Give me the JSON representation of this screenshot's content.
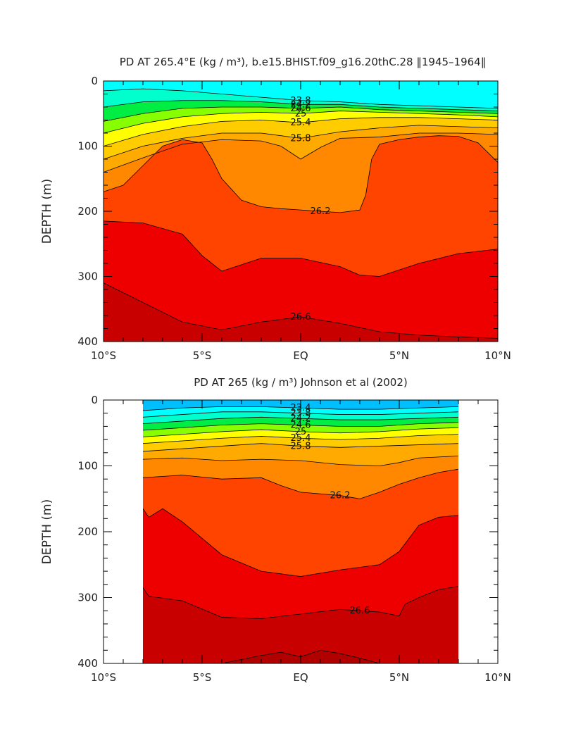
{
  "chart_data": [
    {
      "type": "contour",
      "title": "PD AT 265.4°E (kg / m³), b.e15.BHIST.f09_g16.20thC.28 ‖1945–1964‖",
      "ylabel": "DEPTH (m)",
      "xlabel": "",
      "xlim": [
        -10,
        10
      ],
      "ylim": [
        400,
        0
      ],
      "x_ticks": [
        -10,
        -5,
        0,
        5,
        10
      ],
      "x_tick_labels": [
        "10°S",
        "5°S",
        "EQ",
        "5°N",
        "10°N"
      ],
      "y_ticks": [
        0,
        100,
        200,
        300,
        400
      ],
      "y_tick_labels": [
        "0",
        "100",
        "200",
        "300",
        "400"
      ],
      "data_xrange": [
        -10,
        10
      ],
      "labeled_contours": [
        "23.8",
        "24.2",
        "24.6",
        "25",
        "25.4",
        "25.8",
        "26.2",
        "26.6"
      ],
      "isopycnals": [
        {
          "level": 26.6,
          "x": [
            -10,
            -8,
            -6,
            -4,
            -2,
            0,
            2,
            4,
            6,
            8,
            10
          ],
          "depth": [
            310,
            340,
            370,
            382,
            370,
            362,
            372,
            385,
            390,
            393,
            395
          ]
        },
        {
          "level": 26.4,
          "x": [
            -10,
            -8,
            -6,
            -5,
            -4,
            -2,
            0,
            2,
            3,
            4,
            6,
            8,
            10
          ],
          "depth": [
            215,
            218,
            235,
            268,
            292,
            272,
            272,
            285,
            298,
            300,
            280,
            265,
            258
          ]
        },
        {
          "level": 26.2,
          "x": [
            -10,
            -9,
            -8,
            -7,
            -6,
            -5,
            -4.5,
            -4,
            -3,
            -2,
            -1,
            0,
            1,
            2,
            3,
            3.3,
            3.6,
            4,
            5,
            6,
            7,
            8,
            9,
            10
          ],
          "depth": [
            170,
            160,
            130,
            100,
            90,
            95,
            120,
            150,
            183,
            193,
            196,
            198,
            200,
            202,
            198,
            175,
            120,
            97,
            90,
            86,
            84,
            85,
            95,
            125
          ]
        },
        {
          "level": 26.0,
          "x": [
            -10,
            -8,
            -6,
            -4,
            -2,
            -1,
            0,
            1,
            2,
            4,
            6,
            8,
            10
          ],
          "depth": [
            140,
            118,
            97,
            90,
            92,
            100,
            120,
            102,
            88,
            86,
            80,
            80,
            82
          ]
        },
        {
          "level": 25.8,
          "x": [
            -10,
            -8,
            -6,
            -4,
            -2,
            0,
            2,
            4,
            6,
            8,
            10
          ],
          "depth": [
            120,
            100,
            88,
            80,
            80,
            88,
            78,
            72,
            68,
            70,
            72
          ]
        },
        {
          "level": 25.4,
          "x": [
            -10,
            -8,
            -6,
            -4,
            -2,
            0,
            2,
            4,
            6,
            8,
            10
          ],
          "depth": [
            100,
            82,
            70,
            62,
            60,
            64,
            58,
            56,
            56,
            58,
            60
          ]
        },
        {
          "level": 25.0,
          "x": [
            -10,
            -8,
            -6,
            -4,
            -2,
            0,
            2,
            4,
            6,
            8,
            10
          ],
          "depth": [
            80,
            65,
            55,
            50,
            48,
            50,
            46,
            48,
            50,
            52,
            55
          ]
        },
        {
          "level": 24.6,
          "x": [
            -10,
            -8,
            -6,
            -4,
            -2,
            0,
            2,
            4,
            6,
            8,
            10
          ],
          "depth": [
            62,
            50,
            42,
            40,
            40,
            42,
            40,
            44,
            46,
            48,
            50
          ]
        },
        {
          "level": 24.2,
          "x": [
            -10,
            -8,
            -6,
            -4,
            -2,
            0,
            2,
            4,
            6,
            8,
            10
          ],
          "depth": [
            40,
            32,
            30,
            30,
            32,
            36,
            36,
            40,
            42,
            44,
            46
          ]
        },
        {
          "level": 23.8,
          "x": [
            -10,
            -8,
            -6,
            -4,
            -2,
            0,
            2,
            4,
            6,
            8,
            10
          ],
          "depth": [
            15,
            12,
            15,
            20,
            25,
            30,
            32,
            36,
            38,
            40,
            42
          ]
        }
      ]
    },
    {
      "type": "contour",
      "title": "PD AT 265 (kg / m³) Johnson et al (2002)",
      "ylabel": "DEPTH (m)",
      "xlabel": "",
      "xlim": [
        -10,
        10
      ],
      "ylim": [
        400,
        0
      ],
      "x_ticks": [
        -10,
        -5,
        0,
        5,
        10
      ],
      "x_tick_labels": [
        "10°S",
        "5°S",
        "EQ",
        "5°N",
        "10°N"
      ],
      "y_ticks": [
        0,
        100,
        200,
        300,
        400
      ],
      "y_tick_labels": [
        "0",
        "100",
        "200",
        "300",
        "400"
      ],
      "data_xrange": [
        -8,
        8
      ],
      "labeled_contours": [
        "23.4",
        "23.8",
        "24.2",
        "24.6",
        "25",
        "25.4",
        "25.8",
        "26.2",
        "26.6"
      ],
      "isopycnals": [
        {
          "level": 26.8,
          "x": [
            -8,
            -6,
            -4,
            -2,
            -1,
            0,
            1,
            2,
            3,
            4
          ],
          "depth": [
            400,
            400,
            400,
            388,
            383,
            390,
            380,
            385,
            392,
            400
          ]
        },
        {
          "level": 26.6,
          "x": [
            -8,
            -7.7,
            -6,
            -4,
            -2,
            0,
            2,
            3,
            4,
            5,
            5.3,
            6,
            7,
            8
          ],
          "depth": [
            285,
            298,
            305,
            330,
            332,
            325,
            318,
            320,
            322,
            328,
            310,
            300,
            288,
            283
          ]
        },
        {
          "level": 26.4,
          "x": [
            -8,
            -7.7,
            -7,
            -6,
            -4,
            -2,
            0,
            2,
            4,
            5,
            6,
            7,
            8
          ],
          "depth": [
            165,
            178,
            165,
            185,
            235,
            260,
            268,
            258,
            250,
            230,
            190,
            178,
            175
          ]
        },
        {
          "level": 26.2,
          "x": [
            -8,
            -6,
            -4,
            -2,
            -1,
            0,
            2,
            3,
            4,
            5,
            6,
            7,
            8
          ],
          "depth": [
            118,
            114,
            120,
            118,
            130,
            140,
            145,
            150,
            140,
            128,
            118,
            110,
            105
          ]
        },
        {
          "level": 26.0,
          "x": [
            -8,
            -6,
            -4,
            -2,
            0,
            2,
            4,
            5,
            6,
            8
          ],
          "depth": [
            90,
            88,
            92,
            90,
            92,
            98,
            100,
            95,
            88,
            85
          ]
        },
        {
          "level": 25.8,
          "x": [
            -8,
            -6,
            -4,
            -2,
            0,
            2,
            4,
            6,
            8
          ],
          "depth": [
            78,
            74,
            70,
            66,
            70,
            72,
            70,
            68,
            66
          ]
        },
        {
          "level": 25.4,
          "x": [
            -8,
            -6,
            -4,
            -2,
            0,
            2,
            4,
            6,
            8
          ],
          "depth": [
            66,
            62,
            58,
            55,
            58,
            60,
            58,
            54,
            52
          ]
        },
        {
          "level": 25.0,
          "x": [
            -8,
            -6,
            -4,
            -2,
            0,
            2,
            4,
            6,
            8
          ],
          "depth": [
            56,
            52,
            48,
            45,
            48,
            50,
            48,
            44,
            42
          ]
        },
        {
          "level": 24.6,
          "x": [
            -8,
            -6,
            -4,
            -2,
            0,
            2,
            4,
            6,
            8
          ],
          "depth": [
            46,
            42,
            38,
            36,
            38,
            40,
            40,
            36,
            34
          ]
        },
        {
          "level": 24.2,
          "x": [
            -8,
            -6,
            -4,
            -2,
            0,
            2,
            4,
            6,
            8
          ],
          "depth": [
            36,
            32,
            28,
            26,
            28,
            30,
            30,
            28,
            26
          ]
        },
        {
          "level": 23.8,
          "x": [
            -8,
            -6,
            -4,
            -2,
            0,
            2,
            4,
            6,
            8
          ],
          "depth": [
            26,
            22,
            18,
            18,
            20,
            22,
            22,
            20,
            18
          ]
        },
        {
          "level": 23.4,
          "x": [
            -8,
            -6,
            -4,
            -2,
            0,
            2,
            4,
            6,
            8
          ],
          "depth": [
            16,
            12,
            10,
            10,
            12,
            14,
            14,
            12,
            10
          ]
        }
      ]
    }
  ],
  "colors": {
    "rho_26_8": "#b00000",
    "rho_26_6": "#c80000",
    "rho_26_4": "#ee0000",
    "rho_26_2": "#ff4400",
    "rho_26_0": "#ff8800",
    "rho_25_8": "#ffaa00",
    "rho_25_4": "#ffcc00",
    "rho_25_0": "#ffff00",
    "rho_24_6": "#88ff00",
    "rho_24_2": "#00ee44",
    "rho_23_8": "#00ffcc",
    "rho_23_4": "#00ffff",
    "rho_23_0": "#00bfff",
    "rho_22_6": "#0040ff",
    "rho_22_2": "#6000ff",
    "rho_21_8": "#ff00ff",
    "rho_21_4": "#c0c0c0"
  }
}
